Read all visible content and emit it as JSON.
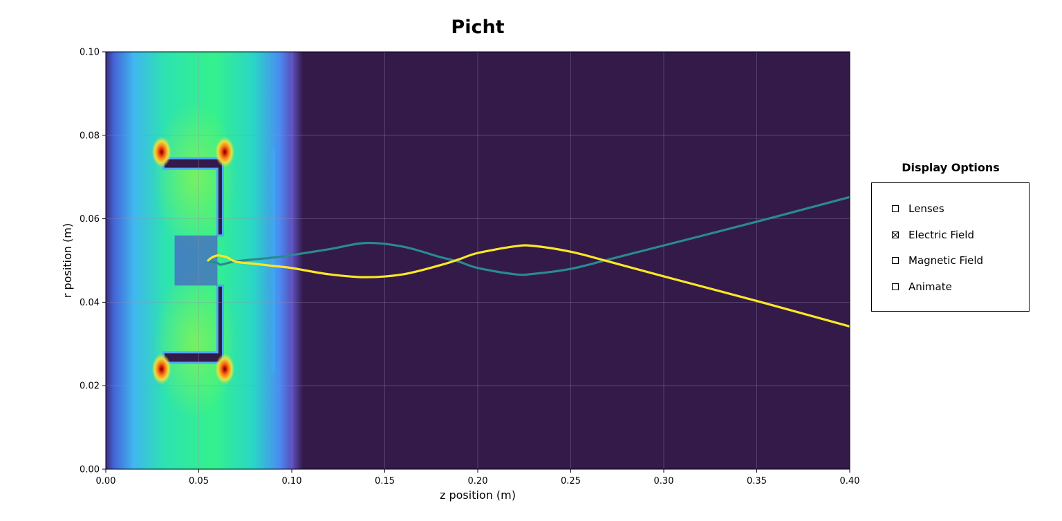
{
  "chart_data": {
    "type": "line",
    "title": "Picht",
    "xlabel": "z position (m)",
    "ylabel": "r position (m)",
    "xlim": [
      0.0,
      0.4
    ],
    "ylim": [
      0.0,
      0.1
    ],
    "x_ticks": [
      "0.00",
      "0.05",
      "0.10",
      "0.15",
      "0.20",
      "0.25",
      "0.30",
      "0.35",
      "0.40"
    ],
    "y_ticks": [
      "0.00",
      "0.02",
      "0.04",
      "0.06",
      "0.08",
      "0.10"
    ],
    "grid": true,
    "background_color": "#331a49",
    "field_overlay": "electric-field-contour",
    "series": [
      {
        "color": "#2a8a8e",
        "x": [
          0.055,
          0.06,
          0.062,
          0.07,
          0.09,
          0.1,
          0.12,
          0.14,
          0.16,
          0.18,
          0.19,
          0.2,
          0.22,
          0.23,
          0.25,
          0.27,
          0.3,
          0.35,
          0.4
        ],
        "y": [
          0.0498,
          0.0494,
          0.049,
          0.0498,
          0.0507,
          0.0513,
          0.0527,
          0.0542,
          0.0533,
          0.0508,
          0.0497,
          0.0482,
          0.0467,
          0.0468,
          0.048,
          0.0502,
          0.0536,
          0.0593,
          0.0652
        ]
      },
      {
        "color": "#fde725",
        "x": [
          0.055,
          0.057,
          0.06,
          0.062,
          0.065,
          0.07,
          0.08,
          0.09,
          0.1,
          0.12,
          0.14,
          0.16,
          0.18,
          0.19,
          0.2,
          0.22,
          0.23,
          0.25,
          0.27,
          0.3,
          0.35,
          0.4
        ],
        "y": [
          0.05,
          0.0507,
          0.0512,
          0.0511,
          0.0508,
          0.0497,
          0.0492,
          0.0487,
          0.0482,
          0.0467,
          0.046,
          0.0467,
          0.0489,
          0.0503,
          0.0518,
          0.0534,
          0.0535,
          0.0521,
          0.0498,
          0.0462,
          0.0403,
          0.0342
        ]
      }
    ]
  },
  "panel": {
    "title": "Display Options",
    "options": [
      {
        "label": "Lenses",
        "checked": false
      },
      {
        "label": "Electric Field",
        "checked": true
      },
      {
        "label": "Magnetic Field",
        "checked": false
      },
      {
        "label": "Animate",
        "checked": false
      }
    ]
  }
}
